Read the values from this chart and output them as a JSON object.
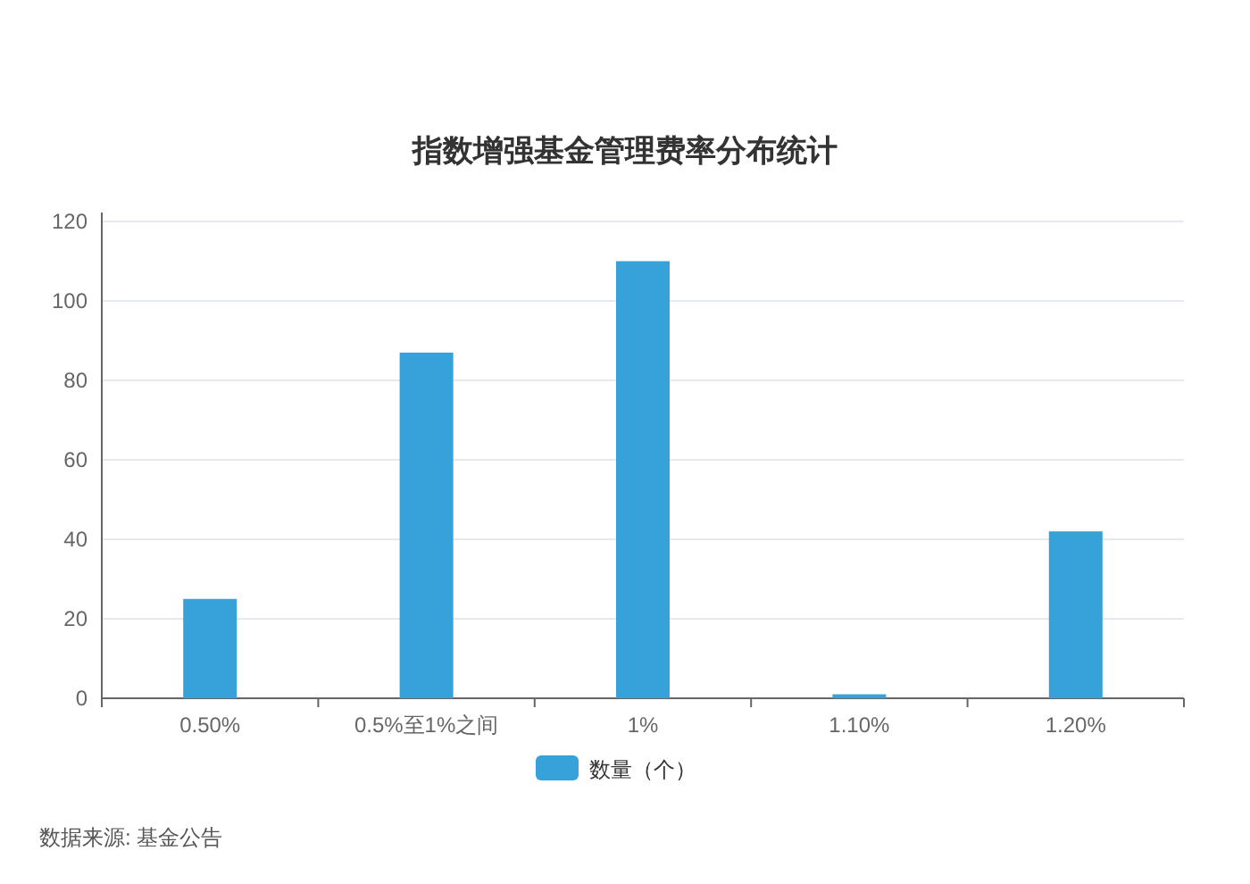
{
  "chart_data": {
    "type": "bar",
    "title": "指数增强基金管理费率分布统计",
    "categories": [
      "0.50%",
      "0.5%至1%之间",
      "1%",
      "1.10%",
      "1.20%"
    ],
    "series": [
      {
        "name": "数量（个）",
        "color": "#37a2da",
        "values": [
          25,
          87,
          110,
          1,
          42
        ]
      }
    ],
    "ylim": [
      0,
      120
    ],
    "yticks": [
      0,
      20,
      40,
      60,
      80,
      100,
      120
    ],
    "grid": "y",
    "legend": "bottom",
    "annotations": [
      "数据来源: 基金公告"
    ]
  }
}
